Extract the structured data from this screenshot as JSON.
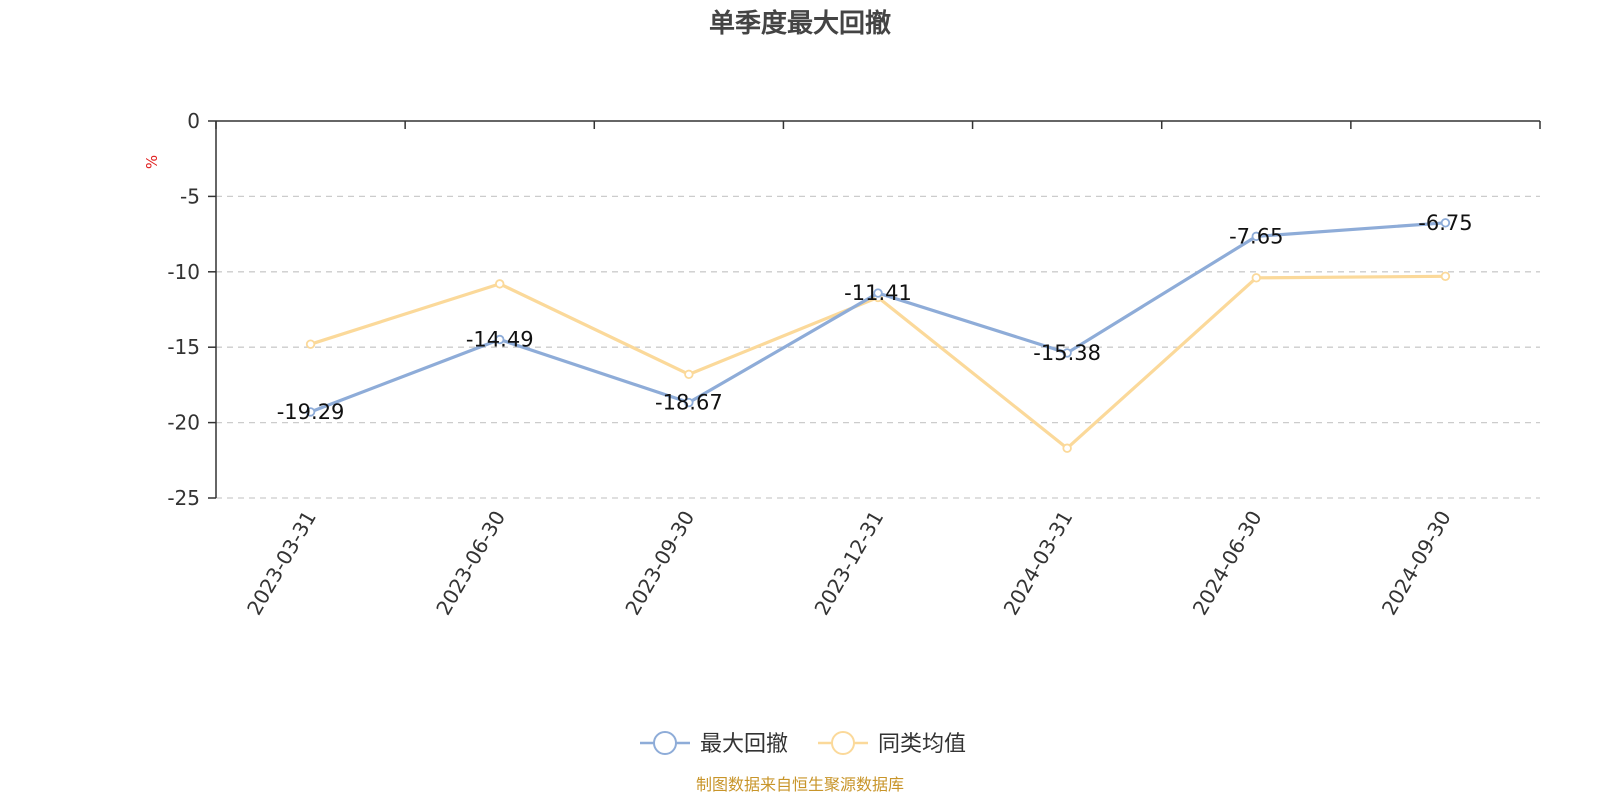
{
  "chart_data": {
    "type": "line",
    "title": "单季度最大回撤",
    "ylabel": "%",
    "xlabel": "",
    "categories": [
      "2023-03-31",
      "2023-06-30",
      "2023-09-30",
      "2023-12-31",
      "2024-03-31",
      "2024-06-30",
      "2024-09-30"
    ],
    "ylim": [
      -25,
      0
    ],
    "yticks": [
      0,
      -5,
      -10,
      -15,
      -20,
      -25
    ],
    "grid": true,
    "legend_position": "bottom-center",
    "series": [
      {
        "name": "最大回撤",
        "color": "#8eacd8",
        "values": [
          -19.29,
          -14.49,
          -18.67,
          -11.41,
          -15.38,
          -7.65,
          -6.75
        ],
        "data_labels": [
          "-19.29",
          "-14.49",
          "-18.67",
          "-11.41",
          "-15.38",
          "-7.65",
          "-6.75"
        ]
      },
      {
        "name": "同类均值",
        "color": "#fbd99a",
        "values": [
          -14.8,
          -10.8,
          -16.8,
          -11.7,
          -21.7,
          -10.4,
          -10.3
        ]
      }
    ]
  },
  "source_text": "制图数据来自恒生聚源数据库"
}
